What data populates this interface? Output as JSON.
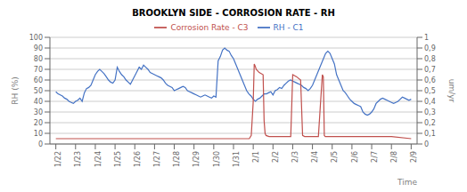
{
  "chart_data": {
    "type": "line",
    "title": "BROOKLYN SIDE - CORROSION RATE - RH",
    "xlabel": "Time",
    "ylabel": "RH (%)",
    "y2label": "um/yr",
    "xlim": [
      -0.3,
      18.3
    ],
    "xticks": [
      {
        "value": 0,
        "label": "1/22"
      },
      {
        "value": 1,
        "label": "1/23"
      },
      {
        "value": 2,
        "label": "1/24"
      },
      {
        "value": 3,
        "label": "1/25"
      },
      {
        "value": 4,
        "label": "1/26"
      },
      {
        "value": 5,
        "label": "1/27"
      },
      {
        "value": 6,
        "label": "1/28"
      },
      {
        "value": 7,
        "label": "1/29"
      },
      {
        "value": 8,
        "label": "1/30"
      },
      {
        "value": 9,
        "label": "1/31"
      },
      {
        "value": 10,
        "label": "2/1"
      },
      {
        "value": 11,
        "label": "2/2"
      },
      {
        "value": 12,
        "label": "2/3"
      },
      {
        "value": 13,
        "label": "2/4"
      },
      {
        "value": 14,
        "label": "2/5"
      },
      {
        "value": 15,
        "label": "2/6"
      },
      {
        "value": 16,
        "label": "2/7"
      },
      {
        "value": 17,
        "label": "2/8"
      },
      {
        "value": 18,
        "label": "2/9"
      }
    ],
    "ylim": [
      0,
      100
    ],
    "yticks": [
      0,
      10,
      20,
      30,
      40,
      50,
      60,
      70,
      80,
      90,
      100
    ],
    "y2lim": [
      0,
      1
    ],
    "y2ticks": [
      0,
      {
        "value": 0.1,
        "label": "0,1"
      },
      {
        "value": 0.2,
        "label": "0,2"
      },
      {
        "value": 0.3,
        "label": "0,3"
      },
      {
        "value": 0.4,
        "label": "0,4"
      },
      {
        "value": 0.5,
        "label": "0,5"
      },
      {
        "value": 0.6,
        "label": "0,6"
      },
      {
        "value": 0.7,
        "label": "0,7"
      },
      {
        "value": 0.8,
        "label": "0,8"
      },
      {
        "value": 0.9,
        "label": "0,9"
      },
      1
    ],
    "grid": true,
    "legend": "top",
    "series": [
      {
        "name": "RH - C1",
        "color": "#4472C4",
        "x": [
          0,
          0.111111111111,
          0.222222222222,
          0.333333333333,
          0.444444444444,
          0.555555555556,
          0.666666666667,
          0.777777777778,
          0.888888888889,
          1,
          1.111111111111,
          1.222222222222,
          1.333333333333,
          1.444444444444,
          1.555555555556,
          1.666666666667,
          1.777777777778,
          1.888888888889,
          2,
          2.111111111111,
          2.222222222222,
          2.333333333333,
          2.444444444444,
          2.555555555556,
          2.666666666667,
          2.777777777778,
          2.888888888889,
          3,
          3.111111111111,
          3.222222222222,
          3.333333333333,
          3.444444444444,
          3.555555555556,
          3.666666666667,
          3.777777777778,
          3.888888888889,
          4,
          4.111111111111,
          4.222222222222,
          4.333333333333,
          4.444444444444,
          4.555555555556,
          4.666666666667,
          4.777777777778,
          4.888888888889,
          5,
          5.111111111111,
          5.222222222222,
          5.333333333333,
          5.444444444444,
          5.555555555556,
          5.666666666667,
          5.777777777778,
          5.888888888889,
          6,
          6.111111111111,
          6.222222222222,
          6.333333333333,
          6.444444444444,
          6.555555555556,
          6.666666666667,
          6.777777777778,
          6.888888888889,
          7,
          7.111111111111,
          7.222222222222,
          7.333333333333,
          7.444444444444,
          7.555555555556,
          7.666666666667,
          7.777777777778,
          7.888888888889,
          8,
          8.111111111111,
          8.222222222222,
          8.333333333333,
          8.444444444444,
          8.555555555556,
          8.666666666667,
          8.777777777778,
          8.888888888889,
          9,
          9.111111111111,
          9.222222222222,
          9.333333333333,
          9.444444444444,
          9.555555555556,
          9.666666666667,
          9.777777777778,
          9.888888888889,
          10,
          10.111111111111,
          10.222222222222,
          10.333333333333,
          10.444444444444,
          10.555555555556,
          10.666666666667,
          10.777777777778,
          10.888888888889,
          11,
          11.111111111111,
          11.222222222222,
          11.333333333333,
          11.444444444444,
          11.555555555556,
          11.666666666667,
          11.777777777778,
          11.888888888889,
          12,
          12.111111111111,
          12.222222222222,
          12.333333333333,
          12.444444444444,
          12.555555555556,
          12.666666666667,
          12.777777777778,
          12.888888888889,
          13,
          13.111111111111,
          13.222222222222,
          13.333333333333,
          13.444444444444,
          13.555555555556,
          13.666666666667,
          13.777777777778,
          13.888888888889,
          14,
          14.111111111111,
          14.222222222222,
          14.333333333333,
          14.444444444444,
          14.555555555556,
          14.666666666667,
          14.777777777778,
          14.888888888889,
          15,
          15.111111111111,
          15.222222222222,
          15.333333333333,
          15.444444444444,
          15.555555555556,
          15.666666666667,
          15.777777777778,
          15.888888888889,
          16,
          16.111111111111,
          16.222222222222,
          16.333333333333,
          16.444444444444,
          16.555555555556,
          16.666666666667,
          16.777777777778,
          16.888888888889,
          17,
          17.111111111111,
          17.222222222222,
          17.333333333333,
          17.444444444444,
          17.555555555556,
          17.666666666667,
          17.777777777778,
          17.888888888889,
          18
        ],
        "values": [
          49,
          47,
          46,
          45,
          43,
          42,
          40,
          39,
          38,
          40,
          41,
          43,
          40,
          48,
          52,
          53,
          55,
          60,
          65,
          68,
          70,
          68,
          66,
          63,
          60,
          58,
          57,
          60,
          72,
          68,
          65,
          63,
          60,
          58,
          56,
          60,
          64,
          68,
          72,
          70,
          74,
          72,
          70,
          67,
          66,
          65,
          64,
          63,
          62,
          60,
          57,
          55,
          54,
          53,
          50,
          51,
          52,
          53,
          54,
          53,
          50,
          49,
          48,
          47,
          46,
          45,
          44,
          45,
          46,
          45,
          44,
          43,
          45,
          44,
          78,
          82,
          88,
          90,
          88,
          87,
          83,
          80,
          75,
          70,
          65,
          60,
          55,
          50,
          47,
          45,
          42,
          40,
          42,
          43,
          45,
          47,
          47,
          48,
          49,
          46,
          50,
          51,
          53,
          52,
          55,
          57,
          59,
          60,
          59,
          58,
          57,
          56,
          55,
          53,
          52,
          50,
          52,
          55,
          60,
          65,
          70,
          75,
          80,
          85,
          87,
          85,
          80,
          75,
          65,
          60,
          55,
          50,
          48,
          45,
          42,
          40,
          38,
          37,
          36,
          35,
          30,
          28,
          27,
          28,
          30,
          33,
          38,
          40,
          42,
          43,
          42,
          41,
          40,
          39,
          38,
          39,
          40,
          42,
          44,
          43,
          42,
          41,
          42
        ]
      },
      {
        "name": "Corrosion Rate - C3",
        "color": "#C0504D",
        "axis": "y2",
        "x": [
          0,
          9.8,
          9.9,
          10.0,
          10.05,
          10.1,
          10.15,
          10.3,
          10.5,
          10.55,
          10.6,
          10.65,
          10.8,
          11.0,
          11.2,
          11.3,
          11.5,
          11.7,
          11.8,
          11.9,
          12.0,
          12.2,
          12.4,
          12.5,
          12.6,
          12.8,
          13.0,
          13.3,
          13.5,
          13.55,
          13.6,
          13.65,
          13.8,
          14.0,
          14.5,
          15.0,
          16.0,
          17.0,
          18.0
        ],
        "values": [
          0.05,
          0.05,
          0.08,
          0.4,
          0.75,
          0.73,
          0.7,
          0.67,
          0.65,
          0.22,
          0.1,
          0.08,
          0.07,
          0.07,
          0.07,
          0.07,
          0.07,
          0.07,
          0.07,
          0.07,
          0.65,
          0.63,
          0.6,
          0.08,
          0.07,
          0.07,
          0.07,
          0.07,
          0.65,
          0.63,
          0.08,
          0.07,
          0.07,
          0.07,
          0.07,
          0.07,
          0.07,
          0.07,
          0.05
        ]
      }
    ]
  }
}
